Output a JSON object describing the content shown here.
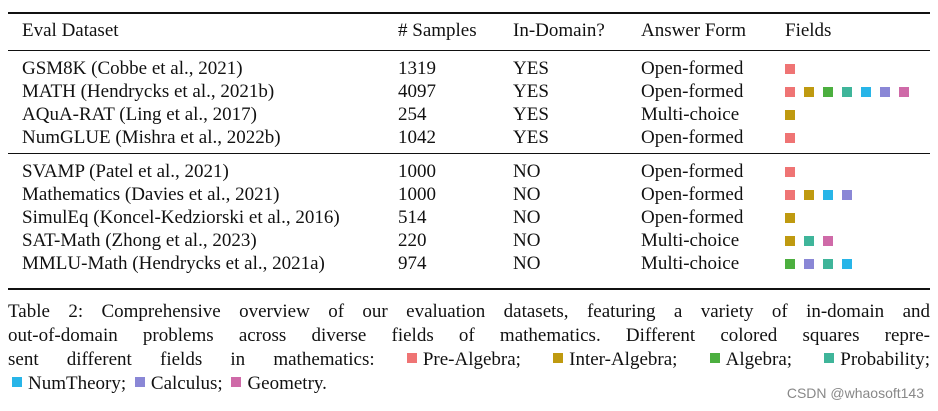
{
  "colors": {
    "Pre-Algebra": "#ef7474",
    "Inter-Algebra": "#bf9a10",
    "Algebra": "#4caf3f",
    "Probability": "#3fb59a",
    "NumTheory": "#28b5e8",
    "Calculus": "#8a87d6",
    "Geometry": "#cf6aa8"
  },
  "table": {
    "headers": {
      "name": "Eval Dataset",
      "samples": "# Samples",
      "indomain": "In-Domain?",
      "form": "Answer Form",
      "fields": "Fields"
    },
    "rows": [
      {
        "name": "GSM8K (Cobbe et al., 2021)",
        "samples": "1319",
        "indomain": "YES",
        "form": "Open-formed",
        "fields": [
          "Pre-Algebra"
        ]
      },
      {
        "name": "MATH (Hendrycks et al., 2021b)",
        "samples": "4097",
        "indomain": "YES",
        "form": "Open-formed",
        "fields": [
          "Pre-Algebra",
          "Inter-Algebra",
          "Algebra",
          "Probability",
          "NumTheory",
          "Calculus",
          "Geometry"
        ]
      },
      {
        "name": "AQuA-RAT (Ling et al., 2017)",
        "samples": "254",
        "indomain": "YES",
        "form": "Multi-choice",
        "fields": [
          "Inter-Algebra"
        ]
      },
      {
        "name": "NumGLUE (Mishra et al., 2022b)",
        "samples": "1042",
        "indomain": "YES",
        "form": "Open-formed",
        "fields": [
          "Pre-Algebra"
        ]
      },
      {
        "name": "SVAMP (Patel et al., 2021)",
        "samples": "1000",
        "indomain": "NO",
        "form": "Open-formed",
        "fields": [
          "Pre-Algebra"
        ]
      },
      {
        "name": "Mathematics (Davies et al., 2021)",
        "samples": "1000",
        "indomain": "NO",
        "form": "Open-formed",
        "fields": [
          "Pre-Algebra",
          "Inter-Algebra",
          "NumTheory",
          "Calculus"
        ]
      },
      {
        "name": "SimulEq (Koncel-Kedziorski et al., 2016)",
        "samples": "514",
        "indomain": "NO",
        "form": "Open-formed",
        "fields": [
          "Inter-Algebra"
        ]
      },
      {
        "name": "SAT-Math (Zhong et al., 2023)",
        "samples": "220",
        "indomain": "NO",
        "form": "Multi-choice",
        "fields": [
          "Inter-Algebra",
          "Probability",
          "Geometry"
        ]
      },
      {
        "name": "MMLU-Math (Hendrycks et al., 2021a)",
        "samples": "974",
        "indomain": "NO",
        "form": "Multi-choice",
        "fields": [
          "Algebra",
          "Calculus",
          "Probability",
          "NumTheory"
        ]
      }
    ]
  },
  "caption": {
    "line1": "Table 2: Comprehensive overview of our evaluation datasets, featuring a variety of in-domain and",
    "line2": "out-of-domain problems across diverse fields of mathematics.  Different colored squares repre-",
    "line3_prefix": "sent different fields in mathematics:",
    "legend": [
      {
        "field": "Pre-Algebra",
        "label": "Pre-Algebra;"
      },
      {
        "field": "Inter-Algebra",
        "label": "Inter-Algebra;"
      },
      {
        "field": "Algebra",
        "label": "Algebra;"
      },
      {
        "field": "Probability",
        "label": "Probability;"
      },
      {
        "field": "NumTheory",
        "label": "NumTheory;"
      },
      {
        "field": "Calculus",
        "label": "Calculus;"
      },
      {
        "field": "Geometry",
        "label": "Geometry."
      }
    ]
  },
  "watermark": "CSDN @whaosoft143"
}
